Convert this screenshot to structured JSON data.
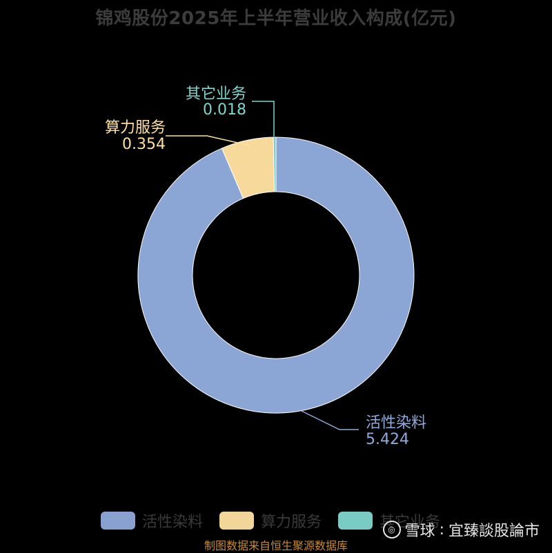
{
  "title": "锦鸡股份2025年上半年营业收入构成(亿元)",
  "source_note": "制图数据来自恒生聚源数据库",
  "watermark": {
    "brand": "雪球",
    "separator": ":",
    "author": "宜臻談股論市"
  },
  "chart_data": {
    "type": "pie",
    "donut": true,
    "title": "锦鸡股份2025年上半年营业收入构成(亿元)",
    "legend_position": "bottom",
    "slices": [
      {
        "label": "活性染料",
        "value": 5.424,
        "value_text": "5.424",
        "color": "#8faadc"
      },
      {
        "label": "算力服务",
        "value": 0.354,
        "value_text": "0.354",
        "color": "#ffe0a0"
      },
      {
        "label": "其它业务",
        "value": 0.018,
        "value_text": "0.018",
        "color": "#7fd6cf"
      }
    ]
  }
}
